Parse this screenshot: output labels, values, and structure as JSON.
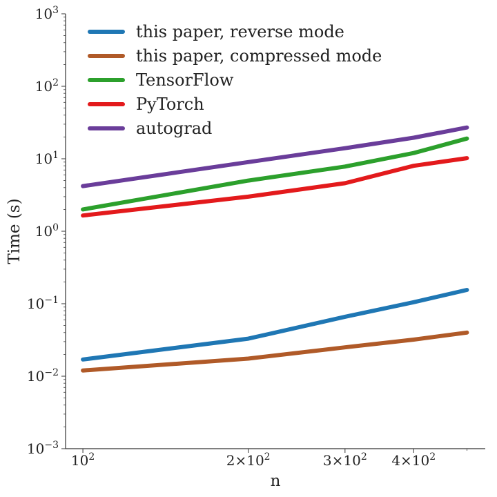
{
  "chart_data": {
    "type": "line",
    "title": "",
    "xlabel": "n",
    "ylabel": "Time (s)",
    "xscale": "log",
    "yscale": "log",
    "xlim": [
      93,
      540
    ],
    "ylim": [
      0.001,
      1000
    ],
    "grid": false,
    "legend_position": "top-left",
    "x": [
      100,
      200,
      300,
      400,
      500
    ],
    "x_ticks": [
      {
        "value": 100,
        "base": "10",
        "exp": "2"
      },
      {
        "value": 200,
        "base": "2×10",
        "exp": "2"
      },
      {
        "value": 300,
        "base": "3×10",
        "exp": "2"
      },
      {
        "value": 400,
        "base": "4×10",
        "exp": "2"
      }
    ],
    "y_ticks": [
      {
        "value": 0.001,
        "base": "10",
        "exp": "−3"
      },
      {
        "value": 0.01,
        "base": "10",
        "exp": "−2"
      },
      {
        "value": 0.1,
        "base": "10",
        "exp": "−1"
      },
      {
        "value": 1,
        "base": "10",
        "exp": "0"
      },
      {
        "value": 10,
        "base": "10",
        "exp": "1"
      },
      {
        "value": 100,
        "base": "10",
        "exp": "2"
      },
      {
        "value": 1000,
        "base": "10",
        "exp": "3"
      }
    ],
    "series": [
      {
        "name": "this paper, reverse mode",
        "color": "#1f77b4",
        "values": [
          0.017,
          0.033,
          0.066,
          0.105,
          0.155
        ]
      },
      {
        "name": "this paper, compressed mode",
        "color": "#b05a28",
        "values": [
          0.012,
          0.0175,
          0.025,
          0.032,
          0.04
        ]
      },
      {
        "name": "TensorFlow",
        "color": "#2ca02c",
        "values": [
          2.0,
          5.0,
          7.8,
          12.0,
          19.0
        ]
      },
      {
        "name": "PyTorch",
        "color": "#e31a1c",
        "values": [
          1.65,
          3.0,
          4.6,
          8.0,
          10.2
        ]
      },
      {
        "name": "autograd",
        "color": "#6a3d9a",
        "values": [
          4.2,
          9.0,
          14.0,
          19.5,
          27.0
        ]
      }
    ]
  }
}
